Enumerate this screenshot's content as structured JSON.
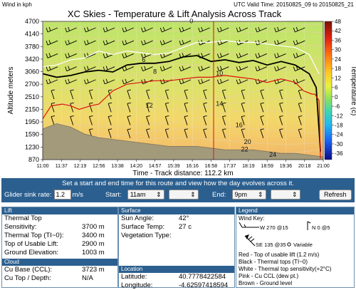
{
  "header": {
    "wind_units": "Wind in kph",
    "valid_time": "UTC Valid Time: 20150825_09 to 20150825_21",
    "title": "XC Skies - Temperature & Lift Analysis Across Track",
    "xlabel": "Time - Track distance: 112.2 km"
  },
  "chart_data": {
    "type": "line",
    "title": "XC Skies - Temperature & Lift Analysis Across Track",
    "xlabel": "Time - Track distance: 112.2 km",
    "ylabel": "Altitude meters",
    "colorbar_label": "Temperature (c)",
    "x_ticks": [
      "11:00",
      "11:37",
      "12:19",
      "12:56",
      "13:38",
      "14:20",
      "14:57",
      "15:39",
      "16:16",
      "16:58",
      "17:37",
      "18:19",
      "18:59",
      "19:36",
      "20:18",
      "21:00"
    ],
    "y_ticks": [
      870,
      1230,
      1590,
      1950,
      2150,
      2510,
      2700,
      3060,
      3420,
      3780,
      4140,
      4700
    ],
    "ylim": [
      870,
      4700
    ],
    "colorbar_ticks": [
      48,
      42,
      36,
      30,
      24,
      18,
      12,
      6,
      0,
      -6,
      -12,
      -18,
      -24,
      -30,
      -36
    ],
    "colorbar_range": [
      -40,
      48
    ],
    "isotherm_labels": [
      {
        "t": 0,
        "x": 0.53,
        "alt": 4620
      },
      {
        "t": 6,
        "x": 0.36,
        "alt": 3340
      },
      {
        "t": 8,
        "x": 0.4,
        "alt": 3000
      },
      {
        "t": 10,
        "x": 0.63,
        "alt": 2950
      },
      {
        "t": 12,
        "x": 0.38,
        "alt": 2200
      },
      {
        "t": 14,
        "x": 0.63,
        "alt": 2250
      },
      {
        "t": 16,
        "x": 0.7,
        "alt": 1800
      },
      {
        "t": 20,
        "x": 0.73,
        "alt": 1320
      },
      {
        "t": 22,
        "x": 0.72,
        "alt": 1100
      },
      {
        "t": 24,
        "x": 0.82,
        "alt": 950
      }
    ],
    "series": [
      {
        "name": "White - Thermal top sensitivity(+2°C)",
        "color": "#ffffff",
        "x": [
          0,
          0.05,
          0.1,
          0.15,
          0.2,
          0.25,
          0.3,
          0.35,
          0.4,
          0.45,
          0.5,
          0.55,
          0.6,
          0.65,
          0.7,
          0.75,
          0.8,
          0.85,
          0.9,
          0.95,
          0.985
        ],
        "y": [
          3200,
          3250,
          3400,
          3450,
          3650,
          3550,
          3650,
          3600,
          3550,
          3600,
          3750,
          3900,
          3900,
          3950,
          3900,
          3900,
          3850,
          3800,
          3750,
          3550,
          3000
        ]
      },
      {
        "name": "Black - Thermal tops (TI~0)",
        "color": "#000000",
        "x": [
          0,
          0.05,
          0.1,
          0.15,
          0.2,
          0.25,
          0.3,
          0.35,
          0.4,
          0.45,
          0.5,
          0.55,
          0.6,
          0.65,
          0.7,
          0.75,
          0.8,
          0.85,
          0.9,
          0.95,
          0.975,
          0.99
        ],
        "y": [
          3000,
          2900,
          2950,
          3050,
          3100,
          3050,
          3250,
          3300,
          3300,
          3350,
          3480,
          3520,
          3350,
          3400,
          3320,
          3380,
          3250,
          3350,
          3250,
          3000,
          2650,
          1100
        ]
      },
      {
        "name": "Red - Top of usable lift (1.2 m/s)",
        "color": "#d11",
        "x": [
          0,
          0.03,
          0.07,
          0.1,
          0.13,
          0.17,
          0.2,
          0.25,
          0.3,
          0.35,
          0.4,
          0.45,
          0.5,
          0.55,
          0.6,
          0.65,
          0.7,
          0.75,
          0.8,
          0.85,
          0.9,
          0.93,
          0.96,
          0.97,
          0.985,
          0.99
        ],
        "y": [
          2000,
          2250,
          2300,
          2250,
          2150,
          2250,
          2300,
          2600,
          2700,
          2750,
          2800,
          2800,
          2850,
          2900,
          2900,
          2950,
          2900,
          2850,
          2750,
          2850,
          2750,
          2600,
          2550,
          2550,
          2400,
          900
        ]
      },
      {
        "name": "Brown - Ground level",
        "color": "#8a7a55",
        "x": [
          0,
          0.05,
          0.1,
          0.15,
          0.2,
          0.25,
          0.3,
          0.35,
          0.4,
          0.45,
          0.5,
          0.55,
          0.6,
          0.65,
          0.7,
          0.75,
          0.8,
          0.85,
          0.9,
          0.95,
          1
        ],
        "y": [
          1750,
          1900,
          1800,
          1600,
          1500,
          1450,
          1400,
          1350,
          1300,
          1250,
          1250,
          1250,
          1200,
          1150,
          1150,
          1150,
          1100,
          1050,
          1050,
          1000,
          950
        ]
      }
    ],
    "track_marker_time": "16:58",
    "grid": true
  },
  "controls": {
    "instruction": "Set a start and end time for this route and view how the day evolves across it.",
    "sink_label": "Glider sink rate:",
    "sink_value": "1.2",
    "sink_unit": "m/s",
    "start_label": "Start:",
    "start_hour": "11am",
    "end_label": "End:",
    "end_hour": "9pm",
    "refresh_label": "Refresh"
  },
  "lift": {
    "title": "Lift",
    "r1_label": "Thermal Top",
    "r2_label": "Sensitivity:",
    "r2_value": "3700 m",
    "r3_label": "Thermal Top (TI~0):",
    "r3_value": "3400 m",
    "r4_label": "Top of Usable Lift:",
    "r4_value": "2900 m",
    "r5_label": "Ground Elevation:",
    "r5_value": "1003 m"
  },
  "cloud": {
    "title": "Cloud",
    "r1_label": "Cu Base (CCL):",
    "r1_value": "3723 m",
    "r2_label": "Cu Top / Depth:",
    "r2_value": "N/A"
  },
  "surface": {
    "title": "Surface",
    "r1_label": "Sun Angle:",
    "r1_value": "42°",
    "r2_label": "Surface Temp:",
    "r2_value": "27 c",
    "r3_label": "Vegetation Type:",
    "r3_value": ""
  },
  "location": {
    "title": "Location",
    "lat_label": "Latitude:",
    "lat_value": "40.7778422584",
    "lon_label": "Longitude:",
    "lon_value": "-4.62597418594"
  },
  "legend": {
    "title": "Legend",
    "wind_key": "Wind Key:",
    "w_label": "W 270 @15",
    "n_label": "N 0 @5",
    "se_label": "SE 135 @35",
    "var_label": "Variable",
    "red": "Red - Top of usable lift (1.2 m/s)",
    "black": "Black - Thermal tops (TI~0)",
    "white": "White - Thermal top sensitivity(+2°C)",
    "pink": "Pink - Cu CCL (dew pt.)",
    "brown": "Brown - Ground level"
  }
}
